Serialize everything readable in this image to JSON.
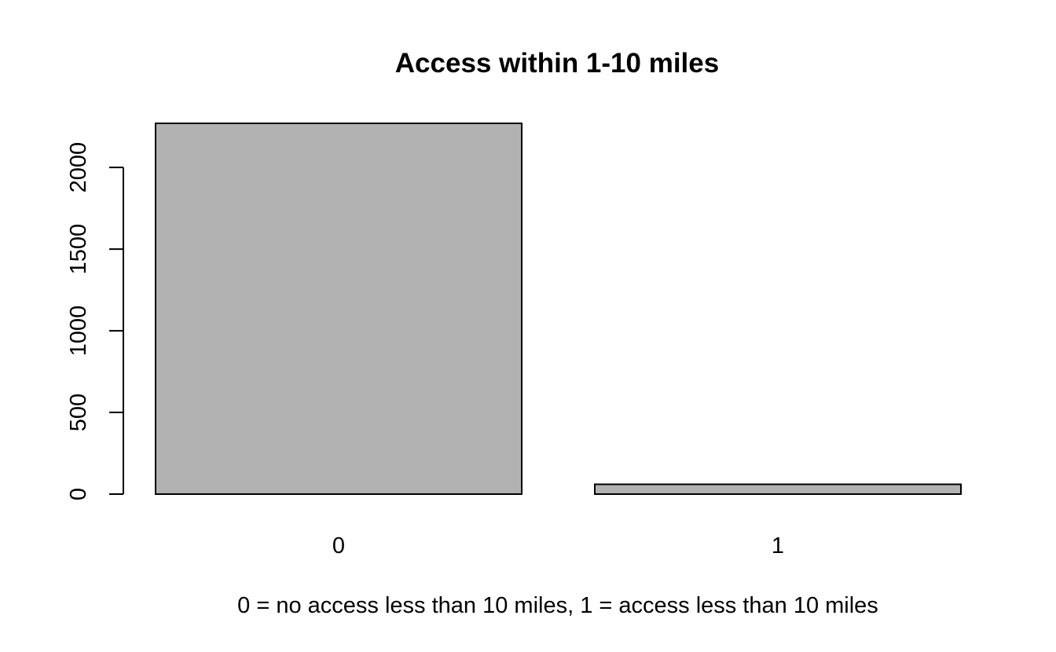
{
  "chart_data": {
    "type": "bar",
    "title": "Access within 1-10 miles",
    "xlabel": "0 = no access less than 10 miles, 1 = access less than 10 miles",
    "ylabel": "",
    "categories": [
      "0",
      "1"
    ],
    "values": [
      2270,
      60
    ],
    "ylim": [
      0,
      2270
    ],
    "yticks": [
      0,
      500,
      1000,
      1500,
      2000
    ],
    "bar_color": "#b2b2b2",
    "grid": false,
    "legend": "none"
  }
}
